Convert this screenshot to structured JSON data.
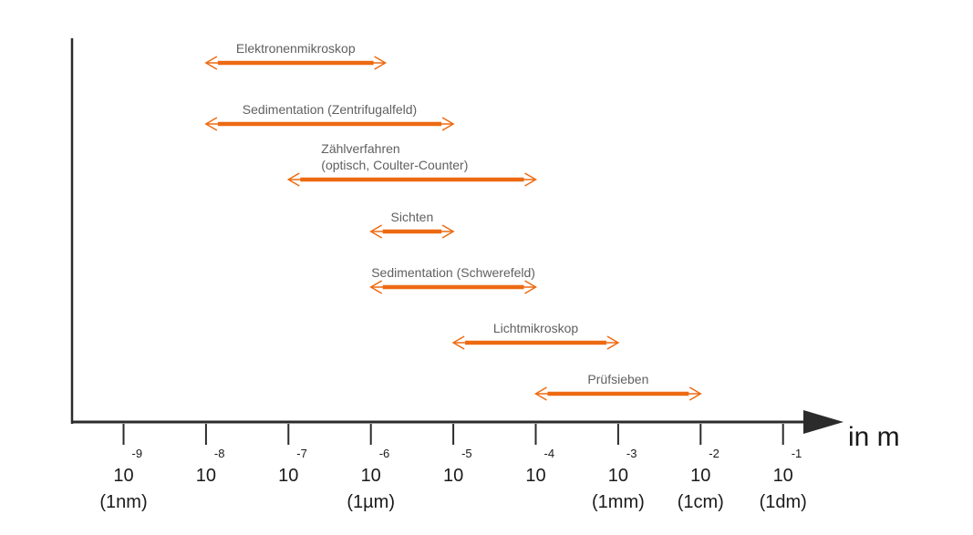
{
  "chart_data": {
    "type": "range",
    "xscale": "log10",
    "xlim": [
      1e-10,
      0.1
    ],
    "x_axis_label": "in m",
    "ticks": [
      {
        "value": 1e-09,
        "base": "10",
        "exp": "-9",
        "unit": "(1nm)"
      },
      {
        "value": 1e-08,
        "base": "10",
        "exp": "-8",
        "unit": ""
      },
      {
        "value": 1e-07,
        "base": "10",
        "exp": "-7",
        "unit": ""
      },
      {
        "value": 1e-06,
        "base": "10",
        "exp": "-6",
        "unit": "(1µm)"
      },
      {
        "value": 1e-05,
        "base": "10",
        "exp": "-5",
        "unit": ""
      },
      {
        "value": 0.0001,
        "base": "10",
        "exp": "-4",
        "unit": ""
      },
      {
        "value": 0.001,
        "base": "10",
        "exp": "-3",
        "unit": "(1mm)"
      },
      {
        "value": 0.01,
        "base": "10",
        "exp": "-2",
        "unit": "(1cm)"
      },
      {
        "value": 0.1,
        "base": "10",
        "exp": "-1",
        "unit": "(1dm)"
      }
    ],
    "methods": [
      {
        "label": [
          "Elektronenmikroskop"
        ],
        "min": 1e-08,
        "max": 1.5e-06
      },
      {
        "label": [
          "Sedimentation (Zentrifugalfeld)"
        ],
        "min": 1e-08,
        "max": 1e-05
      },
      {
        "label": [
          "Zählverfahren",
          "(optisch, Coulter-Counter)"
        ],
        "min": 1e-07,
        "max": 0.0001
      },
      {
        "label": [
          "Sichten"
        ],
        "min": 1e-06,
        "max": 1e-05
      },
      {
        "label": [
          "Sedimentation (Schwerefeld)"
        ],
        "min": 1e-06,
        "max": 0.0001
      },
      {
        "label": [
          "Lichtmikroskop"
        ],
        "min": 1e-05,
        "max": 0.001
      },
      {
        "label": [
          "Prüfsieben"
        ],
        "min": 0.0001,
        "max": 0.01
      }
    ],
    "colors": {
      "range": "#ed6a12",
      "axis": "#2b2b2b"
    }
  }
}
